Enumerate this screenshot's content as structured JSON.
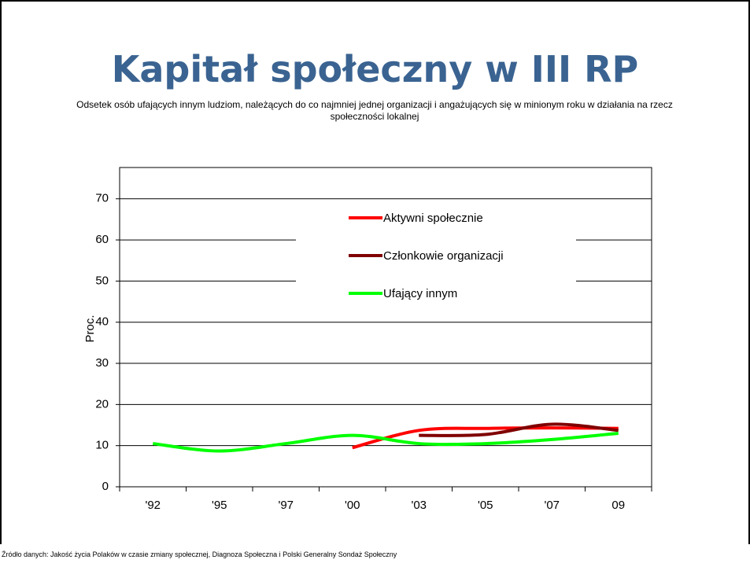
{
  "chart_data": {
    "type": "line",
    "title": "Kapitał społeczny w III RP",
    "subtitle": "Odsetek osób ufających innym ludziom, należących do co najmniej jednej organizacji i angażujących się w minionym roku w działania na rzecz społeczności lokalnej",
    "source": "Źródło danych: Jakość życia Polaków w czasie zmiany społecznej,  Diagnoza Społeczna i Polski Generalny Sondaż Społeczny",
    "y_label": "Proc.",
    "categories": [
      "'92",
      "'95",
      "'97",
      "'00",
      "'03",
      "'05",
      "'07",
      "09"
    ],
    "series": [
      {
        "name": "Aktywni społecznie",
        "color": "#ff0000",
        "values": [
          null,
          null,
          null,
          9.5,
          13.7,
          14.2,
          14.3,
          14.2
        ]
      },
      {
        "name": "Członkowie organizacji",
        "color": "#800000",
        "values": [
          null,
          null,
          null,
          null,
          12.5,
          12.7,
          15.2,
          13.7
        ]
      },
      {
        "name": "Ufający innym",
        "color": "#00ff00",
        "values": [
          10.5,
          8.7,
          10.5,
          12.5,
          10.5,
          10.5,
          11.5,
          13.0
        ]
      }
    ],
    "ylim": [
      0,
      77.6
    ],
    "yticks": [
      0,
      10,
      20,
      30,
      40,
      50,
      60,
      70
    ],
    "grid": true
  }
}
